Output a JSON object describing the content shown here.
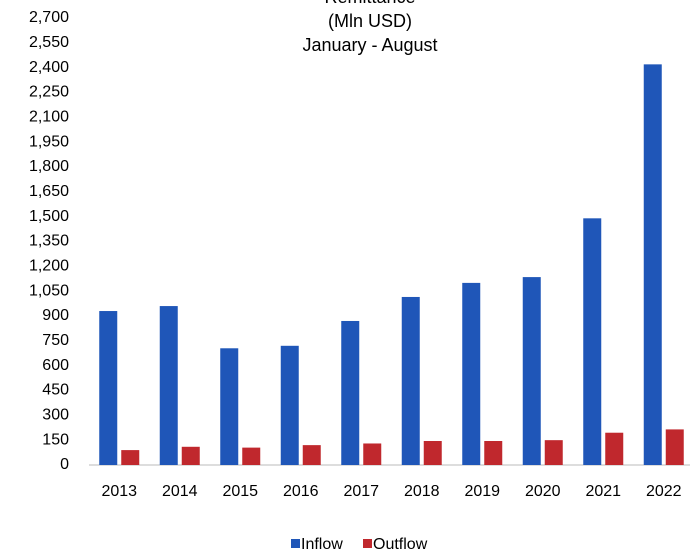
{
  "chart_data": {
    "type": "bar",
    "title_lines": [
      "Remittance",
      "(Mln USD)",
      "January - August"
    ],
    "categories": [
      "2013",
      "2014",
      "2015",
      "2016",
      "2017",
      "2018",
      "2019",
      "2020",
      "2021",
      "2022"
    ],
    "series": [
      {
        "name": "Inflow",
        "color": "#1f56b8",
        "values": [
          930,
          960,
          705,
          720,
          870,
          1015,
          1100,
          1135,
          1490,
          2420
        ]
      },
      {
        "name": "Outflow",
        "color": "#c0282d",
        "values": [
          90,
          110,
          105,
          120,
          130,
          145,
          145,
          150,
          195,
          215
        ]
      }
    ],
    "ylim": [
      0,
      2700
    ],
    "yticks": [
      0,
      150,
      300,
      450,
      600,
      750,
      900,
      {
        "value": 1050,
        "label": "1,050"
      },
      {
        "value": 1200,
        "label": "1,200"
      },
      {
        "value": 1350,
        "label": "1,350"
      },
      {
        "value": 1500,
        "label": "1,500"
      },
      {
        "value": 1650,
        "label": "1,650"
      },
      {
        "value": 1800,
        "label": "1,800"
      },
      {
        "value": 1950,
        "label": "1,950"
      },
      {
        "value": 2100,
        "label": "2,100"
      },
      {
        "value": 2250,
        "label": "2,250"
      },
      {
        "value": 2400,
        "label": "2,400"
      },
      {
        "value": 2550,
        "label": "2,550"
      },
      {
        "value": 2700,
        "label": "2,700"
      }
    ],
    "legend": "bottom"
  }
}
